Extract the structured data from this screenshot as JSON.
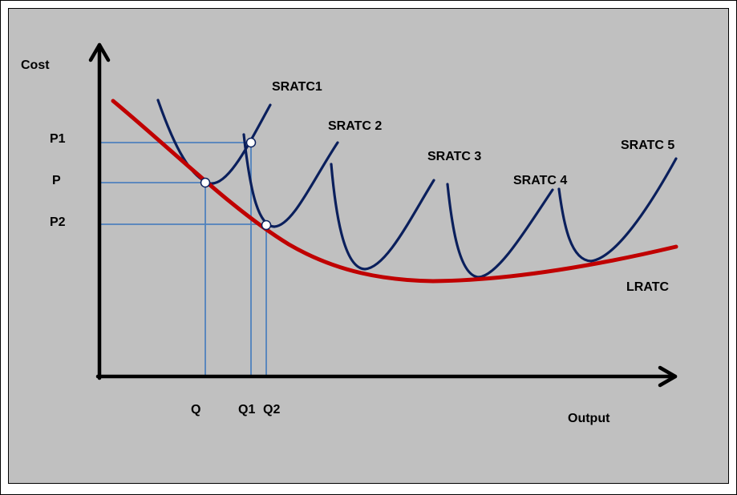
{
  "colors": {
    "background": "#c0c0c0",
    "frame": "#000000",
    "axis": "#000000",
    "lratc_curve": "#c00000",
    "sratc_curves": "#0a1f5c",
    "guide_lines": "#4f81bd",
    "points": "#ffffff"
  },
  "axes": {
    "y_label": "Cost",
    "x_label": "Output"
  },
  "price_labels": {
    "p1": "P1",
    "p": "P",
    "p2": "P2"
  },
  "quantity_labels": {
    "q": "Q",
    "q1": "Q1",
    "q2": "Q2"
  },
  "curves": {
    "lratc": "LRATC",
    "sratc": [
      "SRATC1",
      "SRATC 2",
      "SRATC 3",
      "SRATC 4",
      "SRATC 5"
    ]
  }
}
